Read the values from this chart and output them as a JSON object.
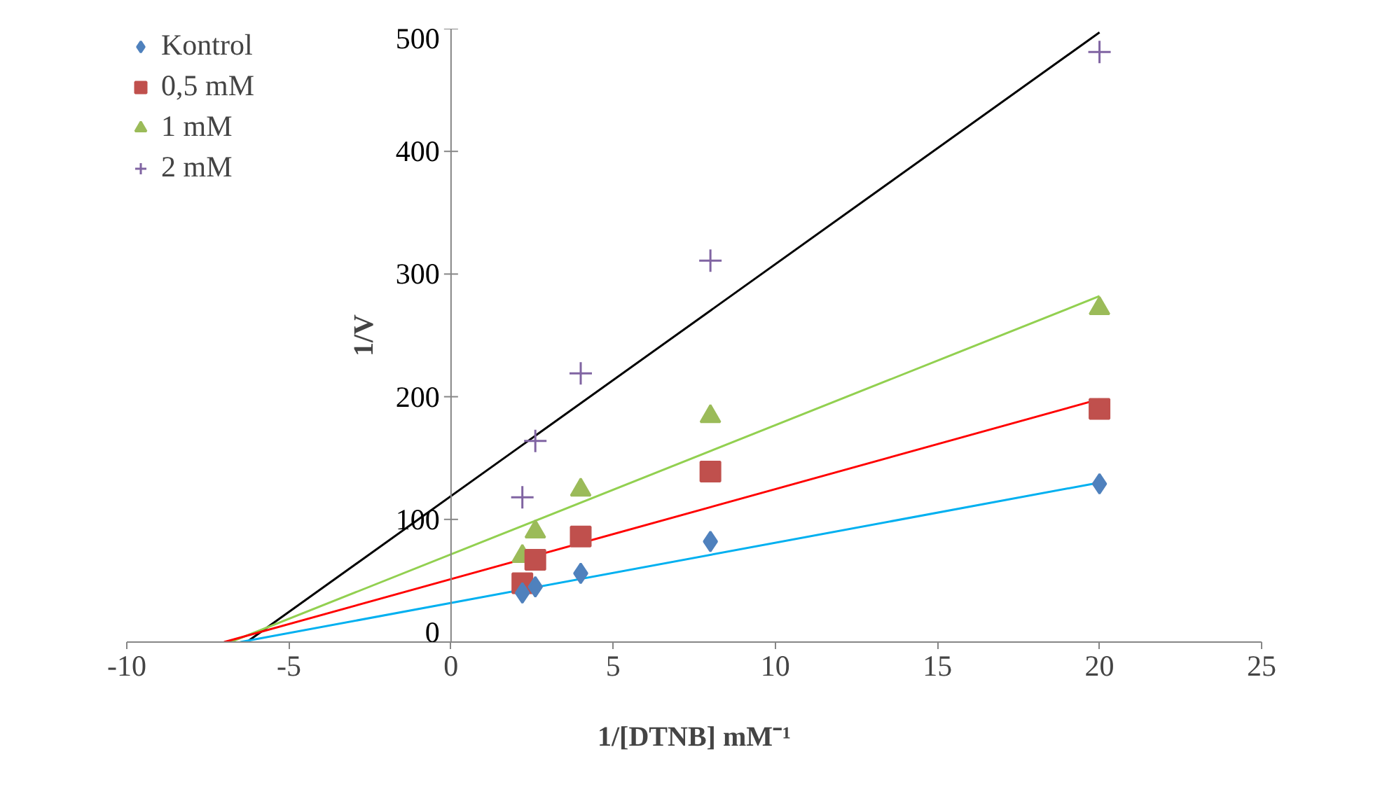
{
  "chart_data": {
    "type": "scatter",
    "xlabel": "1/[DTNB] mM⁻¹",
    "ylabel": "1/V",
    "xlim": [
      -10,
      25
    ],
    "ylim": [
      0,
      500
    ],
    "xticks": [
      -10,
      -5,
      0,
      5,
      10,
      15,
      20,
      25
    ],
    "yticks": [
      0,
      100,
      200,
      300,
      400,
      500
    ],
    "grid": false,
    "legend": "top left",
    "series": [
      {
        "name": "Kontrol",
        "color": "#4f81bd",
        "marker": "diamond",
        "x": [
          2.2,
          2.6,
          4,
          8,
          20
        ],
        "values": [
          40,
          45,
          56,
          82,
          129
        ]
      },
      {
        "name": "0,5 mM",
        "color": "#c0504d",
        "marker": "square",
        "x": [
          2.2,
          2.6,
          4,
          8,
          20
        ],
        "values": [
          48,
          67,
          86,
          139,
          190
        ]
      },
      {
        "name": "1 mM",
        "color": "#9bbb59",
        "marker": "triangle",
        "x": [
          2.2,
          2.6,
          4,
          8,
          20
        ],
        "values": [
          70,
          90,
          124,
          184,
          272
        ]
      },
      {
        "name": "2 mM",
        "color": "#8064a2",
        "marker": "cross",
        "x": [
          2.2,
          2.6,
          4,
          8,
          20
        ],
        "values": [
          118,
          164,
          219,
          311,
          481
        ]
      },
      {
        "type": "line",
        "color": "#00b0f0",
        "x": [
          -6.5,
          20
        ],
        "values": [
          0,
          130
        ]
      },
      {
        "type": "line",
        "color": "#ff0000",
        "x": [
          -7,
          20
        ],
        "values": [
          0,
          198
        ]
      },
      {
        "type": "line",
        "color": "#92d050",
        "x": [
          -6.8,
          20
        ],
        "values": [
          0,
          282
        ]
      },
      {
        "type": "line",
        "color": "#000000",
        "x": [
          -6.3,
          20
        ],
        "values": [
          0,
          497
        ]
      }
    ]
  }
}
